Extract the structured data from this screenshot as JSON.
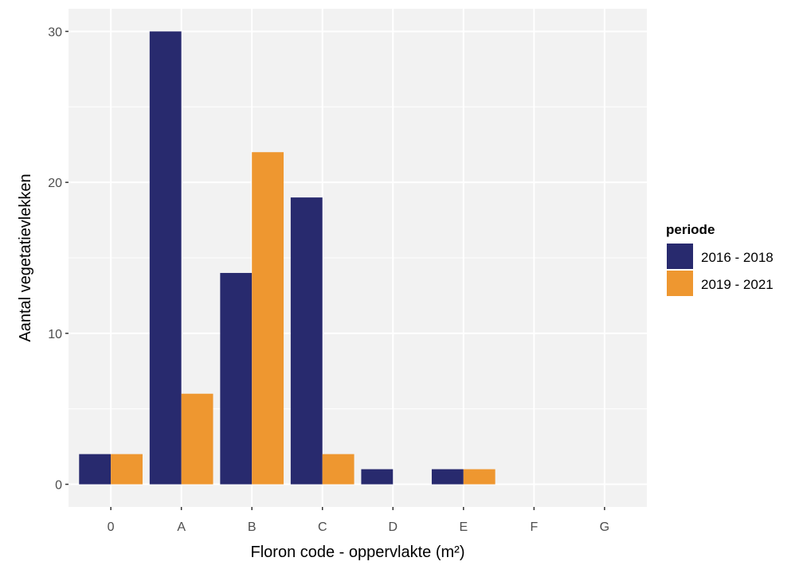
{
  "chart_data": {
    "type": "bar",
    "categories": [
      "0",
      "A",
      "B",
      "C",
      "D",
      "E",
      "F",
      "G"
    ],
    "series": [
      {
        "name": "2016 - 2018",
        "color": "#282A6E",
        "values": [
          2,
          30,
          14,
          19,
          1,
          1,
          0,
          0
        ]
      },
      {
        "name": "2019 - 2021",
        "color": "#EE9730",
        "values": [
          2,
          6,
          22,
          2,
          0,
          1,
          0,
          0
        ]
      }
    ],
    "title": "",
    "xlabel": "Floron code - oppervlakte (m²)",
    "ylabel": "Aantal vegetatievlekken",
    "ylim": [
      -1.5,
      31.5
    ],
    "yticks": [
      0,
      10,
      20,
      30
    ],
    "grid": true,
    "legend": {
      "title": "periode",
      "position": "right"
    },
    "panel_background": "#F2F2F2",
    "grid_color": "#FFFFFF"
  }
}
